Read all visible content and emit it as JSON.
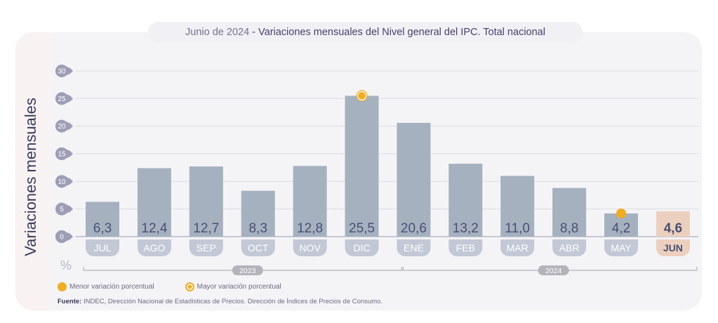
{
  "header": {
    "date": "Junio de 2024",
    "separator": " - ",
    "title": "Variaciones mensuales del Nivel general del IPC. Total nacional"
  },
  "legend": {
    "min_label": "Menor variación porcentual",
    "max_label": "Mayor variación porcentual"
  },
  "source": {
    "label": "Fuente:",
    "text": " INDEC, Dirección Nacional de Estadísticas de Precios. Dirección de Índices de Precios de Consumo."
  },
  "unit_label": "%",
  "colors": {
    "bar": "#a6b1c0",
    "bar_highlight": "#ecd0bf",
    "month_pill": "#c2c8d5",
    "tick_pill": "#9d9db5",
    "marker": "#f0ad20",
    "value_text": "#4a4f72"
  },
  "chart_data": {
    "type": "bar",
    "title": "Junio de 2024 - Variaciones mensuales del Nivel general del IPC. Total nacional",
    "xlabel": "",
    "ylabel": "Variaciones mensuales",
    "ylim": [
      0,
      30
    ],
    "yticks": [
      0,
      5,
      10,
      15,
      20,
      25,
      30
    ],
    "grid": true,
    "categories": [
      "JUL",
      "AGO",
      "SEP",
      "OCT",
      "NOV",
      "DIC",
      "ENE",
      "FEB",
      "MAR",
      "ABR",
      "MAY",
      "JUN"
    ],
    "values": [
      6.3,
      12.4,
      12.7,
      8.3,
      12.8,
      25.5,
      20.6,
      13.2,
      11.0,
      8.8,
      4.2,
      4.6
    ],
    "value_labels": [
      "6,3",
      "12,4",
      "12,7",
      "8,3",
      "12,8",
      "25,5",
      "20,6",
      "13,2",
      "11,0",
      "8,8",
      "4,2",
      "4,6"
    ],
    "highlight_index": 11,
    "max_marker_index": 5,
    "min_marker_index": 10,
    "year_groups": [
      {
        "label": "2023",
        "from": 0,
        "to": 5
      },
      {
        "label": "2024",
        "from": 6,
        "to": 11
      }
    ],
    "legend_position": "bottom-left"
  }
}
